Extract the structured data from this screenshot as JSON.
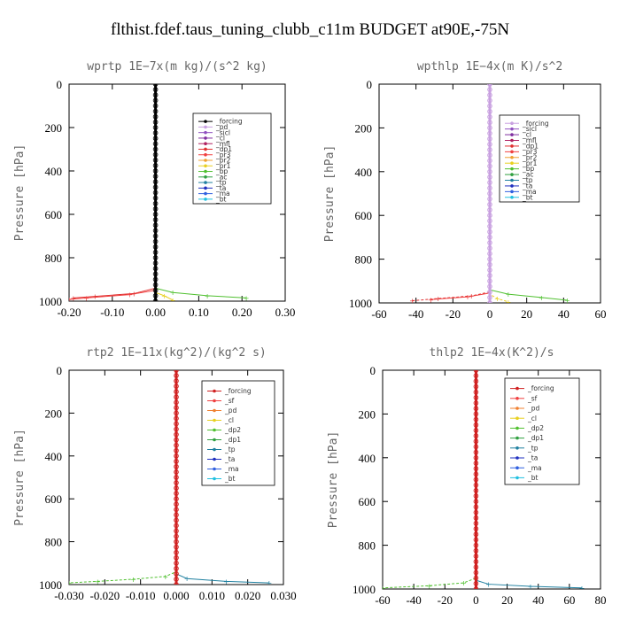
{
  "figure": {
    "title": "flthist.fdef.taus_tuning_clubb_c11m  BUDGET at90E,-75N"
  },
  "chart_data": [
    {
      "type": "line",
      "title": "wprtp  1E−7x(m kg)/(s^2 kg)",
      "ylabel": "Pressure [hPa]",
      "xlim": [
        -0.2,
        0.3
      ],
      "ylim": [
        1000,
        0
      ],
      "xticks": [
        "-0.20",
        "-0.10",
        "0.00",
        "0.10",
        "0.20",
        "0.30"
      ],
      "xtick_values": [
        -0.2,
        -0.1,
        0.0,
        0.1,
        0.2,
        0.3
      ],
      "yticks": [
        "0",
        "200",
        "400",
        "600",
        "800",
        "1000"
      ],
      "ytick_values": [
        0,
        200,
        400,
        600,
        800,
        1000
      ],
      "legend_position": "top-right",
      "series": [
        {
          "name": "_forcing",
          "color": "#000000",
          "points": [
            [
              0,
              0
            ],
            [
              0,
              1000
            ]
          ]
        },
        {
          "name": "_pd",
          "color": "#c8a0e0",
          "points": [
            [
              0,
              0
            ],
            [
              0,
              1000
            ]
          ]
        },
        {
          "name": "_sicl",
          "color": "#9050c0",
          "points": [
            [
              0,
              0
            ],
            [
              0,
              1000
            ]
          ]
        },
        {
          "name": "_cl",
          "color": "#8030a0",
          "points": [
            [
              0,
              0
            ],
            [
              0,
              1000
            ]
          ]
        },
        {
          "name": "_mfl",
          "color": "#b02060",
          "points": [
            [
              0,
              0
            ],
            [
              0,
              1000
            ]
          ]
        },
        {
          "name": "_dp1",
          "color": "#e03030",
          "points": [
            [
              0,
              0
            ],
            [
              0,
              940
            ],
            [
              -0.05,
              965
            ],
            [
              -0.14,
              978
            ],
            [
              -0.19,
              985
            ]
          ]
        },
        {
          "name": "_pr3",
          "color": "#f04040",
          "points": [
            [
              0,
              0
            ],
            [
              0,
              950
            ],
            [
              -0.06,
              970
            ],
            [
              -0.16,
              985
            ],
            [
              -0.2,
              992
            ]
          ]
        },
        {
          "name": "_pr2",
          "color": "#f0a030",
          "points": [
            [
              0,
              0
            ],
            [
              0,
              1000
            ]
          ]
        },
        {
          "name": "_pr1",
          "color": "#e8d020",
          "points": [
            [
              0,
              0
            ],
            [
              0,
              960
            ],
            [
              0.02,
              975
            ],
            [
              0.04,
              995
            ]
          ]
        },
        {
          "name": "_bp",
          "color": "#50c030",
          "points": [
            [
              0,
              0
            ],
            [
              0,
              940
            ],
            [
              0.04,
              960
            ],
            [
              0.12,
              975
            ],
            [
              0.21,
              985
            ]
          ]
        },
        {
          "name": "_ac",
          "color": "#30a040",
          "points": [
            [
              0,
              0
            ],
            [
              0,
              1000
            ]
          ]
        },
        {
          "name": "_tp",
          "color": "#2080a0",
          "points": [
            [
              0,
              0
            ],
            [
              0,
              1000
            ]
          ]
        },
        {
          "name": "_ta",
          "color": "#2030c0",
          "points": [
            [
              0,
              0
            ],
            [
              0,
              1000
            ]
          ]
        },
        {
          "name": "_ma",
          "color": "#3060e0",
          "points": [
            [
              0,
              0
            ],
            [
              0,
              1000
            ]
          ]
        },
        {
          "name": "_bt",
          "color": "#20c0e0",
          "points": [
            [
              0,
              0
            ],
            [
              0,
              1000
            ]
          ]
        }
      ]
    },
    {
      "type": "line",
      "title": "wpthlp  1E−4x(m K)/s^2",
      "ylabel": "Pressure [hPa]",
      "xlim": [
        -60,
        60
      ],
      "ylim": [
        1000,
        0
      ],
      "xticks": [
        "-60",
        "-40",
        "-20",
        "0",
        "20",
        "40",
        "60"
      ],
      "xtick_values": [
        -60,
        -40,
        -20,
        0,
        20,
        40,
        60
      ],
      "yticks": [
        "0",
        "200",
        "400",
        "600",
        "800",
        "1000"
      ],
      "ytick_values": [
        0,
        200,
        400,
        600,
        800,
        1000
      ],
      "legend_position": "top-right",
      "series": [
        {
          "name": "_forcing",
          "color": "#c8a0e0",
          "points": [
            [
              0,
              0
            ],
            [
              0,
              1000
            ]
          ]
        },
        {
          "name": "_sicl",
          "color": "#9050c0",
          "points": [
            [
              0,
              0
            ],
            [
              0,
              1000
            ]
          ]
        },
        {
          "name": "_cl",
          "color": "#8030a0",
          "points": [
            [
              0,
              0
            ],
            [
              0,
              1000
            ]
          ]
        },
        {
          "name": "_mfl",
          "color": "#b02060",
          "points": [
            [
              0,
              0
            ],
            [
              0,
              1000
            ]
          ]
        },
        {
          "name": "_dp1",
          "color": "#e03030",
          "points": [
            [
              0,
              0
            ],
            [
              0,
              950
            ],
            [
              -10,
              968
            ],
            [
              -28,
              980
            ],
            [
              -42,
              990
            ]
          ]
        },
        {
          "name": "_pr3",
          "color": "#f04040",
          "points": [
            [
              0,
              0
            ],
            [
              0,
              955
            ],
            [
              -12,
              972
            ],
            [
              -32,
              985
            ]
          ]
        },
        {
          "name": "_pr2",
          "color": "#f0a030",
          "points": [
            [
              0,
              0
            ],
            [
              0,
              1000
            ]
          ]
        },
        {
          "name": "_pr1",
          "color": "#e8d020",
          "points": [
            [
              0,
              0
            ],
            [
              0,
              960
            ],
            [
              4,
              980
            ],
            [
              10,
              995
            ]
          ]
        },
        {
          "name": "_bp",
          "color": "#50c030",
          "points": [
            [
              0,
              0
            ],
            [
              0,
              940
            ],
            [
              10,
              960
            ],
            [
              28,
              975
            ],
            [
              42,
              988
            ]
          ]
        },
        {
          "name": "_ac",
          "color": "#30a040",
          "points": [
            [
              0,
              0
            ],
            [
              0,
              1000
            ]
          ]
        },
        {
          "name": "_tp",
          "color": "#2080a0",
          "points": [
            [
              0,
              0
            ],
            [
              0,
              1000
            ]
          ]
        },
        {
          "name": "_ta",
          "color": "#2030c0",
          "points": [
            [
              0,
              0
            ],
            [
              0,
              1000
            ]
          ]
        },
        {
          "name": "_ma",
          "color": "#3060e0",
          "points": [
            [
              0,
              0
            ],
            [
              0,
              1000
            ]
          ]
        },
        {
          "name": "_bt",
          "color": "#20c0e0",
          "points": [
            [
              0,
              0
            ],
            [
              0,
              1000
            ]
          ]
        }
      ]
    },
    {
      "type": "line",
      "title": "rtp2  1E−11x(kg^2)/(kg^2 s)",
      "ylabel": "Pressure [hPa]",
      "xlim": [
        -0.03,
        0.03
      ],
      "ylim": [
        1000,
        0
      ],
      "xticks": [
        "-0.030",
        "-0.020",
        "-0.010",
        "0.000",
        "0.010",
        "0.020",
        "0.030"
      ],
      "xtick_values": [
        -0.03,
        -0.02,
        -0.01,
        0.0,
        0.01,
        0.02,
        0.03
      ],
      "yticks": [
        "0",
        "200",
        "400",
        "600",
        "800",
        "1000"
      ],
      "ytick_values": [
        0,
        200,
        400,
        600,
        800,
        1000
      ],
      "legend_position": "top-right",
      "series": [
        {
          "name": "_forcing",
          "color": "#d02020",
          "points": [
            [
              0,
              0
            ],
            [
              0,
              1000
            ]
          ]
        },
        {
          "name": "_sf",
          "color": "#f04040",
          "points": [
            [
              0,
              0
            ],
            [
              0,
              1000
            ]
          ]
        },
        {
          "name": "_pd",
          "color": "#f08030",
          "points": [
            [
              0,
              0
            ],
            [
              0,
              1000
            ]
          ]
        },
        {
          "name": "_cl",
          "color": "#e8d020",
          "points": [
            [
              0,
              0
            ],
            [
              0,
              1000
            ]
          ]
        },
        {
          "name": "_dp2",
          "color": "#50c030",
          "points": [
            [
              0,
              0
            ],
            [
              0,
              940
            ],
            [
              -0.003,
              962
            ],
            [
              -0.012,
              975
            ],
            [
              -0.022,
              985
            ],
            [
              -0.03,
              992
            ]
          ]
        },
        {
          "name": "_dp1",
          "color": "#30a040",
          "points": [
            [
              0,
              0
            ],
            [
              0,
              1000
            ]
          ]
        },
        {
          "name": "_tp",
          "color": "#2080a0",
          "points": [
            [
              0,
              0
            ],
            [
              0,
              950
            ],
            [
              0.003,
              972
            ],
            [
              0.014,
              985
            ],
            [
              0.026,
              992
            ]
          ]
        },
        {
          "name": "_ta",
          "color": "#2030c0",
          "points": [
            [
              0,
              0
            ],
            [
              0,
              1000
            ]
          ]
        },
        {
          "name": "_ma",
          "color": "#3060e0",
          "points": [
            [
              0,
              0
            ],
            [
              0,
              1000
            ]
          ]
        },
        {
          "name": "_bt",
          "color": "#20c0e0",
          "points": [
            [
              0,
              0
            ],
            [
              0,
              1000
            ]
          ]
        }
      ]
    },
    {
      "type": "line",
      "title": "thlp2  1E−4x(K^2)/s",
      "ylabel": "Pressure [hPa]",
      "xlim": [
        -60,
        80
      ],
      "ylim": [
        1000,
        0
      ],
      "xticks": [
        "-60",
        "-40",
        "-20",
        "0",
        "20",
        "40",
        "60",
        "80"
      ],
      "xtick_values": [
        -60,
        -40,
        -20,
        0,
        20,
        40,
        60,
        80
      ],
      "yticks": [
        "0",
        "200",
        "400",
        "600",
        "800",
        "1000"
      ],
      "ytick_values": [
        0,
        200,
        400,
        600,
        800,
        1000
      ],
      "legend_position": "top-right",
      "series": [
        {
          "name": "_forcing",
          "color": "#d02020",
          "points": [
            [
              0,
              0
            ],
            [
              0,
              1000
            ]
          ]
        },
        {
          "name": "_sf",
          "color": "#f04040",
          "points": [
            [
              0,
              0
            ],
            [
              0,
              1000
            ]
          ]
        },
        {
          "name": "_pd",
          "color": "#f08030",
          "points": [
            [
              0,
              0
            ],
            [
              0,
              1000
            ]
          ]
        },
        {
          "name": "_cl",
          "color": "#e8d020",
          "points": [
            [
              0,
              0
            ],
            [
              0,
              1000
            ]
          ]
        },
        {
          "name": "_dp2",
          "color": "#50c030",
          "points": [
            [
              0,
              0
            ],
            [
              0,
              950
            ],
            [
              -8,
              972
            ],
            [
              -30,
              985
            ],
            [
              -60,
              995
            ]
          ]
        },
        {
          "name": "_dp1",
          "color": "#30a040",
          "points": [
            [
              0,
              0
            ],
            [
              0,
              1000
            ]
          ]
        },
        {
          "name": "_tp",
          "color": "#2080a0",
          "points": [
            [
              0,
              0
            ],
            [
              0,
              960
            ],
            [
              8,
              978
            ],
            [
              35,
              988
            ],
            [
              68,
              995
            ]
          ]
        },
        {
          "name": "_ta",
          "color": "#2030c0",
          "points": [
            [
              0,
              0
            ],
            [
              0,
              1000
            ]
          ]
        },
        {
          "name": "_ma",
          "color": "#3060e0",
          "points": [
            [
              0,
              0
            ],
            [
              0,
              1000
            ]
          ]
        },
        {
          "name": "_bt",
          "color": "#20c0e0",
          "points": [
            [
              0,
              0
            ],
            [
              0,
              1000
            ]
          ]
        }
      ]
    }
  ]
}
